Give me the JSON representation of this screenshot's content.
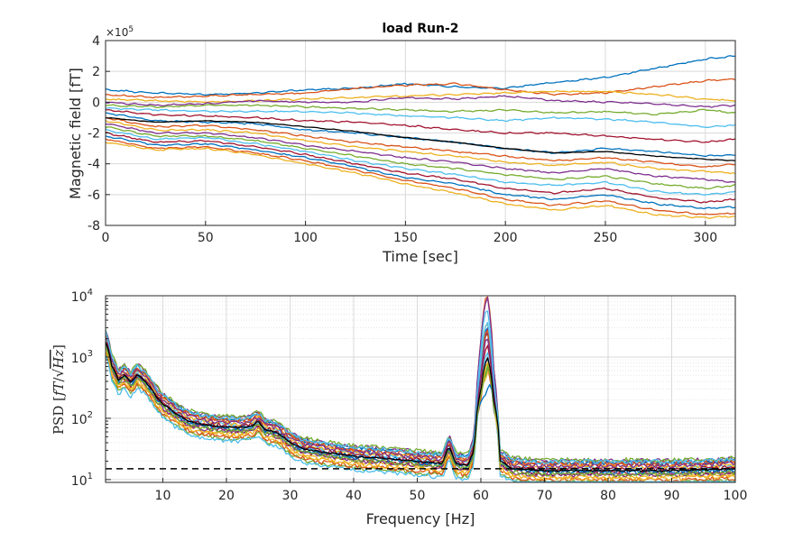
{
  "chart_data": [
    {
      "id": "time",
      "type": "line",
      "title": "load Run-2",
      "xlabel": "Time [sec]",
      "ylabel": "Magnetic field [fT]",
      "y_exponent": "×10^5",
      "y_exponent_base": "×10",
      "y_exponent_power": "5",
      "xlim": [
        0,
        315
      ],
      "ylim": [
        -8,
        4
      ],
      "y_unit_scale": 100000,
      "xticks": [
        0,
        50,
        100,
        150,
        200,
        250,
        300
      ],
      "xtick_labels": [
        "0",
        "50",
        "100",
        "150",
        "200",
        "250",
        "300"
      ],
      "yticks": [
        -8,
        -6,
        -4,
        -2,
        0,
        2,
        4
      ],
      "ytick_labels": [
        "-8",
        "-6",
        "-4",
        "-2",
        "0",
        "2",
        "4"
      ],
      "grid": true,
      "palette": [
        "#0072BD",
        "#D95319",
        "#EDB120",
        "#7E2F8E",
        "#77AC30",
        "#4DBEEE",
        "#A2142F"
      ],
      "mean_color": "#000000",
      "x": [
        0,
        25,
        50,
        75,
        100,
        125,
        150,
        175,
        200,
        225,
        250,
        275,
        300,
        315
      ],
      "series": [
        {
          "values": [
            0.8,
            0.6,
            0.5,
            0.6,
            0.8,
            0.9,
            1.2,
            1.0,
            0.9,
            1.3,
            1.6,
            2.2,
            2.8,
            3.0
          ],
          "thick": false
        },
        {
          "values": [
            0.5,
            0.3,
            0.4,
            0.5,
            0.6,
            0.9,
            1.1,
            1.2,
            0.8,
            0.5,
            0.6,
            1.0,
            1.4,
            1.5
          ],
          "thick": true
        },
        {
          "values": [
            0.2,
            0.1,
            0.0,
            0.1,
            0.2,
            0.3,
            0.4,
            0.5,
            0.6,
            0.7,
            0.7,
            0.5,
            0.2,
            0.1
          ],
          "thick": false
        },
        {
          "values": [
            0.0,
            -0.2,
            -0.1,
            0.1,
            0.0,
            0.0,
            0.3,
            0.2,
            0.4,
            0.1,
            0.0,
            -0.1,
            -0.3,
            -0.2
          ],
          "thick": false
        },
        {
          "values": [
            -0.2,
            -0.3,
            -0.2,
            -0.2,
            -0.3,
            -0.4,
            -0.5,
            -0.6,
            -0.5,
            -0.7,
            -0.6,
            -0.8,
            -0.5,
            -0.7
          ],
          "thick": false
        },
        {
          "values": [
            -0.4,
            -0.5,
            -0.6,
            -0.6,
            -0.6,
            -0.7,
            -0.9,
            -1.0,
            -1.2,
            -1.0,
            -1.1,
            -1.3,
            -1.6,
            -1.5
          ],
          "thick": false
        },
        {
          "values": [
            -0.5,
            -0.8,
            -0.9,
            -1.0,
            -1.2,
            -1.3,
            -1.5,
            -1.8,
            -2.0,
            -2.0,
            -2.2,
            -2.4,
            -2.6,
            -2.4
          ],
          "thick": true
        },
        {
          "values": [
            -0.7,
            -1.2,
            -1.3,
            -1.4,
            -1.8,
            -2.0,
            -2.3,
            -2.6,
            -3.0,
            -3.3,
            -3.0,
            -3.2,
            -3.5,
            -3.4
          ],
          "thick": false
        },
        {
          "values": [
            -1.0,
            -1.6,
            -1.5,
            -1.8,
            -2.2,
            -2.6,
            -2.9,
            -3.2,
            -3.5,
            -3.8,
            -3.6,
            -3.9,
            -4.2,
            -4.0
          ],
          "thick": true
        },
        {
          "values": [
            -1.2,
            -1.8,
            -1.8,
            -2.0,
            -2.5,
            -2.9,
            -3.2,
            -3.5,
            -3.9,
            -4.1,
            -3.9,
            -4.3,
            -4.5,
            -4.6
          ],
          "thick": false
        },
        {
          "values": [
            -1.4,
            -2.0,
            -2.0,
            -2.3,
            -2.8,
            -3.2,
            -3.6,
            -3.9,
            -4.3,
            -4.6,
            -4.3,
            -4.8,
            -5.0,
            -5.2
          ],
          "thick": false
        },
        {
          "values": [
            -1.6,
            -2.2,
            -2.2,
            -2.5,
            -3.0,
            -3.5,
            -4.0,
            -4.3,
            -4.7,
            -5.0,
            -4.8,
            -5.3,
            -5.6,
            -5.4
          ],
          "thick": true
        },
        {
          "values": [
            -1.8,
            -2.4,
            -2.3,
            -2.7,
            -3.2,
            -3.8,
            -4.3,
            -4.7,
            -5.2,
            -5.4,
            -5.2,
            -5.8,
            -6.0,
            -5.8
          ],
          "thick": false
        },
        {
          "values": [
            -2.0,
            -2.6,
            -2.5,
            -2.9,
            -3.4,
            -4.0,
            -4.6,
            -5.0,
            -5.6,
            -5.9,
            -5.6,
            -6.2,
            -6.5,
            -6.3
          ],
          "thick": false
        },
        {
          "values": [
            -2.2,
            -2.8,
            -2.7,
            -3.1,
            -3.6,
            -4.2,
            -4.9,
            -5.3,
            -6.0,
            -6.3,
            -6.0,
            -6.6,
            -6.9,
            -6.8
          ],
          "thick": false
        },
        {
          "values": [
            -2.4,
            -3.0,
            -2.9,
            -3.3,
            -3.8,
            -4.4,
            -5.1,
            -5.6,
            -6.3,
            -6.7,
            -6.4,
            -7.0,
            -7.3,
            -7.2
          ],
          "thick": false
        },
        {
          "values": [
            -2.6,
            -3.1,
            -3.0,
            -3.4,
            -4.0,
            -4.6,
            -5.3,
            -5.9,
            -6.6,
            -7.0,
            -6.7,
            -7.3,
            -7.5,
            -7.4
          ],
          "thick": false
        }
      ],
      "mean": [
        -1.0,
        -1.3,
        -1.2,
        -1.3,
        -1.6,
        -1.9,
        -2.3,
        -2.6,
        -3.0,
        -3.3,
        -3.2,
        -3.5,
        -3.7,
        -3.8
      ]
    },
    {
      "id": "psd",
      "type": "line",
      "xlabel": "Frequency [Hz]",
      "ylabel": "PSD [fT/√Hz]",
      "ylabel_parts": {
        "main": "PSD [",
        "unit_num": "fT",
        "slash": "/",
        "sqrt": "√",
        "unit_den": "Hz",
        "close": "]"
      },
      "xlim": [
        1,
        100
      ],
      "ylim": [
        9,
        10000
      ],
      "yscale": "log",
      "xticks": [
        10,
        20,
        30,
        40,
        50,
        60,
        70,
        80,
        90,
        100
      ],
      "xtick_labels": [
        "10",
        "20",
        "30",
        "40",
        "50",
        "60",
        "70",
        "80",
        "90",
        "100"
      ],
      "yticks": [
        10,
        100,
        1000,
        10000
      ],
      "ytick_labels": [
        {
          "base": "10",
          "exp": "1"
        },
        {
          "base": "10",
          "exp": "2"
        },
        {
          "base": "10",
          "exp": "3"
        },
        {
          "base": "10",
          "exp": "4"
        }
      ],
      "grid": true,
      "minor_grid": true,
      "noise_floor": 15,
      "x": [
        1,
        2,
        3,
        4,
        5,
        6,
        7,
        8,
        9,
        10,
        12,
        14,
        16,
        18,
        20,
        22,
        24,
        25,
        26,
        27,
        28,
        30,
        32,
        35,
        40,
        45,
        50,
        54,
        55,
        56,
        58,
        59,
        60,
        61,
        62,
        63,
        65,
        70,
        80,
        90,
        100
      ],
      "series_scales": [
        1.0,
        1.25,
        0.8,
        1.45,
        0.65,
        1.1,
        0.9,
        1.35,
        0.7,
        1.15,
        0.85,
        1.5,
        0.6,
        1.05,
        0.95,
        1.3,
        0.75,
        1.2,
        0.88,
        1.4
      ],
      "peak_scales": [
        1.0,
        9.0,
        5.0,
        7.0,
        4.0,
        6.0,
        3.0,
        2.5,
        1.0,
        0.5,
        3.5,
        0.4,
        2.0,
        1.5,
        0.3,
        2.2,
        1.2,
        1.8,
        0.8,
        2.8
      ],
      "mean": [
        1800,
        700,
        420,
        500,
        380,
        520,
        420,
        320,
        220,
        170,
        120,
        90,
        80,
        75,
        72,
        70,
        75,
        90,
        65,
        62,
        58,
        40,
        32,
        28,
        24,
        22,
        20,
        18,
        35,
        18,
        17,
        30,
        280,
        1000,
        200,
        20,
        15,
        14,
        14,
        14,
        15
      ],
      "mean_color": "#000000",
      "noise_line_color": "#000000"
    }
  ]
}
